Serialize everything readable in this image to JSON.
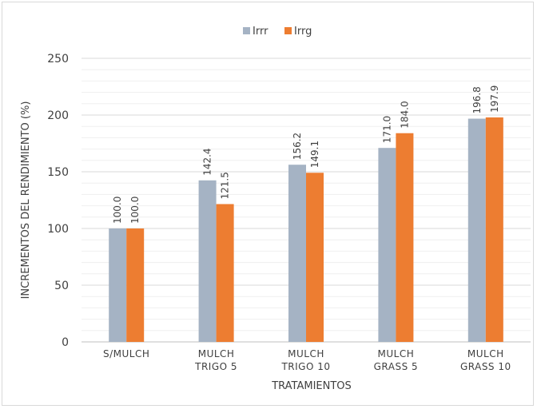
{
  "chart_data": {
    "type": "bar",
    "title": "",
    "xlabel": "TRATAMIENTOS",
    "ylabel": "INCREMENTOS DEL RENDIMIENTO (%)",
    "ylim": [
      0,
      250
    ],
    "yticks": [
      0,
      50,
      100,
      150,
      200,
      250
    ],
    "minor_grid_step": 10,
    "grid": true,
    "legend_position": "top",
    "categories": [
      [
        "S/MULCH"
      ],
      [
        "MULCH",
        "TRIGO 5"
      ],
      [
        "MULCH",
        "TRIGO 10"
      ],
      [
        "MULCH",
        "GRASS 5"
      ],
      [
        "MULCH",
        "GRASS 10"
      ]
    ],
    "series": [
      {
        "name": "Irrr",
        "color": "#a5b3c4",
        "values": [
          100.0,
          142.4,
          156.2,
          171.0,
          196.8
        ],
        "labels": [
          "100.0",
          "142.4",
          "156.2",
          "171.0",
          "196.8"
        ]
      },
      {
        "name": "Irrg",
        "color": "#ed7d31",
        "values": [
          100.0,
          121.5,
          149.1,
          184.0,
          197.9
        ],
        "labels": [
          "100.0",
          "121.5",
          "149.1",
          "184.0",
          "197.9"
        ]
      }
    ]
  }
}
